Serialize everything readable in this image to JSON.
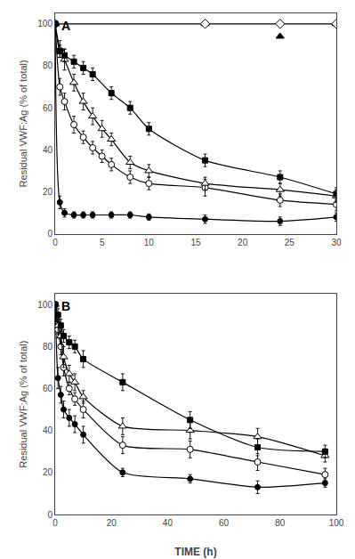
{
  "chart_data": [
    {
      "type": "line",
      "annotations": [
        "A"
      ],
      "ylabel": "Residual VWF:Ag (% of total)",
      "xlim": [
        0,
        30
      ],
      "ylim": [
        0,
        105
      ],
      "xticks": [
        0,
        5,
        10,
        15,
        20,
        25,
        30
      ],
      "yticks": [
        0,
        20,
        40,
        60,
        80,
        100
      ],
      "grid": false,
      "series": [
        {
          "type": "line",
          "line_style": "solid",
          "color": "black",
          "x": [
            0,
            30
          ],
          "values": [
            100,
            100
          ]
        },
        {
          "type": "scatter",
          "marker": "filled_triangle",
          "color": "black",
          "x": [
            0,
            16,
            24,
            30
          ],
          "values": [
            100,
            100,
            94,
            100
          ]
        },
        {
          "type": "scatter",
          "marker": "open_diamond",
          "color": "black",
          "x": [
            0,
            16,
            24,
            30
          ],
          "values": [
            100,
            100,
            100,
            100
          ]
        },
        {
          "type": "line",
          "line_style": "smooth",
          "marker": "filled_circle",
          "color": "black",
          "x": [
            0,
            0.5,
            1,
            2,
            3,
            4,
            6,
            8,
            10,
            16,
            24,
            30
          ],
          "values": [
            100,
            15,
            10,
            9,
            9,
            9,
            9,
            9,
            8,
            7,
            6,
            8
          ],
          "yerr": [
            0,
            3,
            2,
            1.5,
            1.5,
            1.5,
            1.5,
            1.5,
            1.5,
            2,
            2,
            2
          ]
        },
        {
          "type": "line",
          "line_style": "smooth",
          "marker": "open_circle",
          "color": "black",
          "x": [
            0,
            0.5,
            1,
            2,
            3,
            4,
            5,
            6,
            8,
            10,
            16,
            24,
            30
          ],
          "values": [
            100,
            70,
            63,
            52,
            46,
            41,
            37,
            33,
            27,
            24,
            22,
            16,
            14
          ],
          "yerr": [
            0,
            4,
            4,
            4,
            3,
            3,
            3,
            3,
            3,
            3,
            4,
            3,
            3
          ]
        },
        {
          "type": "line",
          "line_style": "smooth",
          "marker": "open_triangle",
          "color": "black",
          "x": [
            0,
            0.5,
            1,
            2,
            3,
            4,
            5,
            6,
            8,
            10,
            16,
            24,
            30
          ],
          "values": [
            100,
            88,
            83,
            72,
            63,
            56,
            50,
            45,
            34,
            30,
            24,
            21,
            18
          ],
          "yerr": [
            0,
            4,
            5,
            4,
            4,
            4,
            4,
            3,
            3,
            3,
            3,
            3,
            3
          ]
        },
        {
          "type": "line",
          "line_style": "smooth",
          "marker": "filled_square",
          "color": "black",
          "x": [
            0,
            0.5,
            1,
            2,
            3,
            4,
            6,
            8,
            10,
            16,
            24,
            30
          ],
          "values": [
            100,
            87,
            85,
            82,
            79,
            76,
            67,
            60,
            50,
            35,
            27,
            19
          ],
          "yerr": [
            0,
            3,
            3,
            3,
            3,
            3,
            3,
            3,
            3,
            3,
            3,
            3
          ]
        }
      ]
    },
    {
      "type": "line",
      "annotations": [
        "B"
      ],
      "ylabel": "Residual VWF:Ag (% of total)",
      "xlabel": "TIME (h)",
      "xlim": [
        0,
        100
      ],
      "ylim": [
        0,
        105
      ],
      "xticks": [
        0,
        20,
        40,
        60,
        80,
        100
      ],
      "yticks": [
        0,
        20,
        40,
        60,
        80,
        100
      ],
      "grid": false,
      "series": [
        {
          "type": "line",
          "line_style": "smooth",
          "marker": "filled_circle",
          "color": "black",
          "x": [
            0,
            1,
            2,
            3,
            5,
            7,
            10,
            24,
            48,
            72,
            96
          ],
          "values": [
            100,
            65,
            57,
            50,
            46,
            43,
            38,
            20,
            17,
            13,
            15
          ],
          "yerr": [
            0,
            5,
            4,
            4,
            4,
            4,
            4,
            2,
            2,
            3,
            2
          ]
        },
        {
          "type": "line",
          "line_style": "smooth",
          "marker": "open_circle",
          "color": "black",
          "x": [
            0,
            1,
            2,
            3,
            5,
            7,
            10,
            24,
            48,
            72,
            96
          ],
          "values": [
            100,
            88,
            80,
            70,
            60,
            55,
            50,
            33,
            31,
            25,
            19
          ],
          "yerr": [
            0,
            4,
            4,
            4,
            3,
            3,
            4,
            4,
            4,
            4,
            3
          ]
        },
        {
          "type": "line",
          "line_style": "smooth",
          "marker": "open_triangle",
          "color": "black",
          "x": [
            0,
            1,
            2,
            3,
            5,
            7,
            10,
            24,
            48,
            72,
            96
          ],
          "values": [
            100,
            90,
            85,
            75,
            67,
            63,
            56,
            42,
            40,
            37,
            28
          ],
          "yerr": [
            0,
            4,
            4,
            5,
            4,
            4,
            3,
            4,
            4,
            4,
            3
          ]
        },
        {
          "type": "line",
          "line_style": "smooth",
          "marker": "filled_square",
          "color": "black",
          "x": [
            0,
            1,
            2,
            3,
            5,
            7,
            10,
            24,
            48,
            72,
            96
          ],
          "values": [
            100,
            95,
            90,
            85,
            82,
            80,
            74,
            63,
            45,
            32,
            30
          ],
          "yerr": [
            0,
            3,
            3,
            3,
            3,
            3,
            4,
            4,
            4,
            4,
            3
          ]
        }
      ]
    }
  ]
}
